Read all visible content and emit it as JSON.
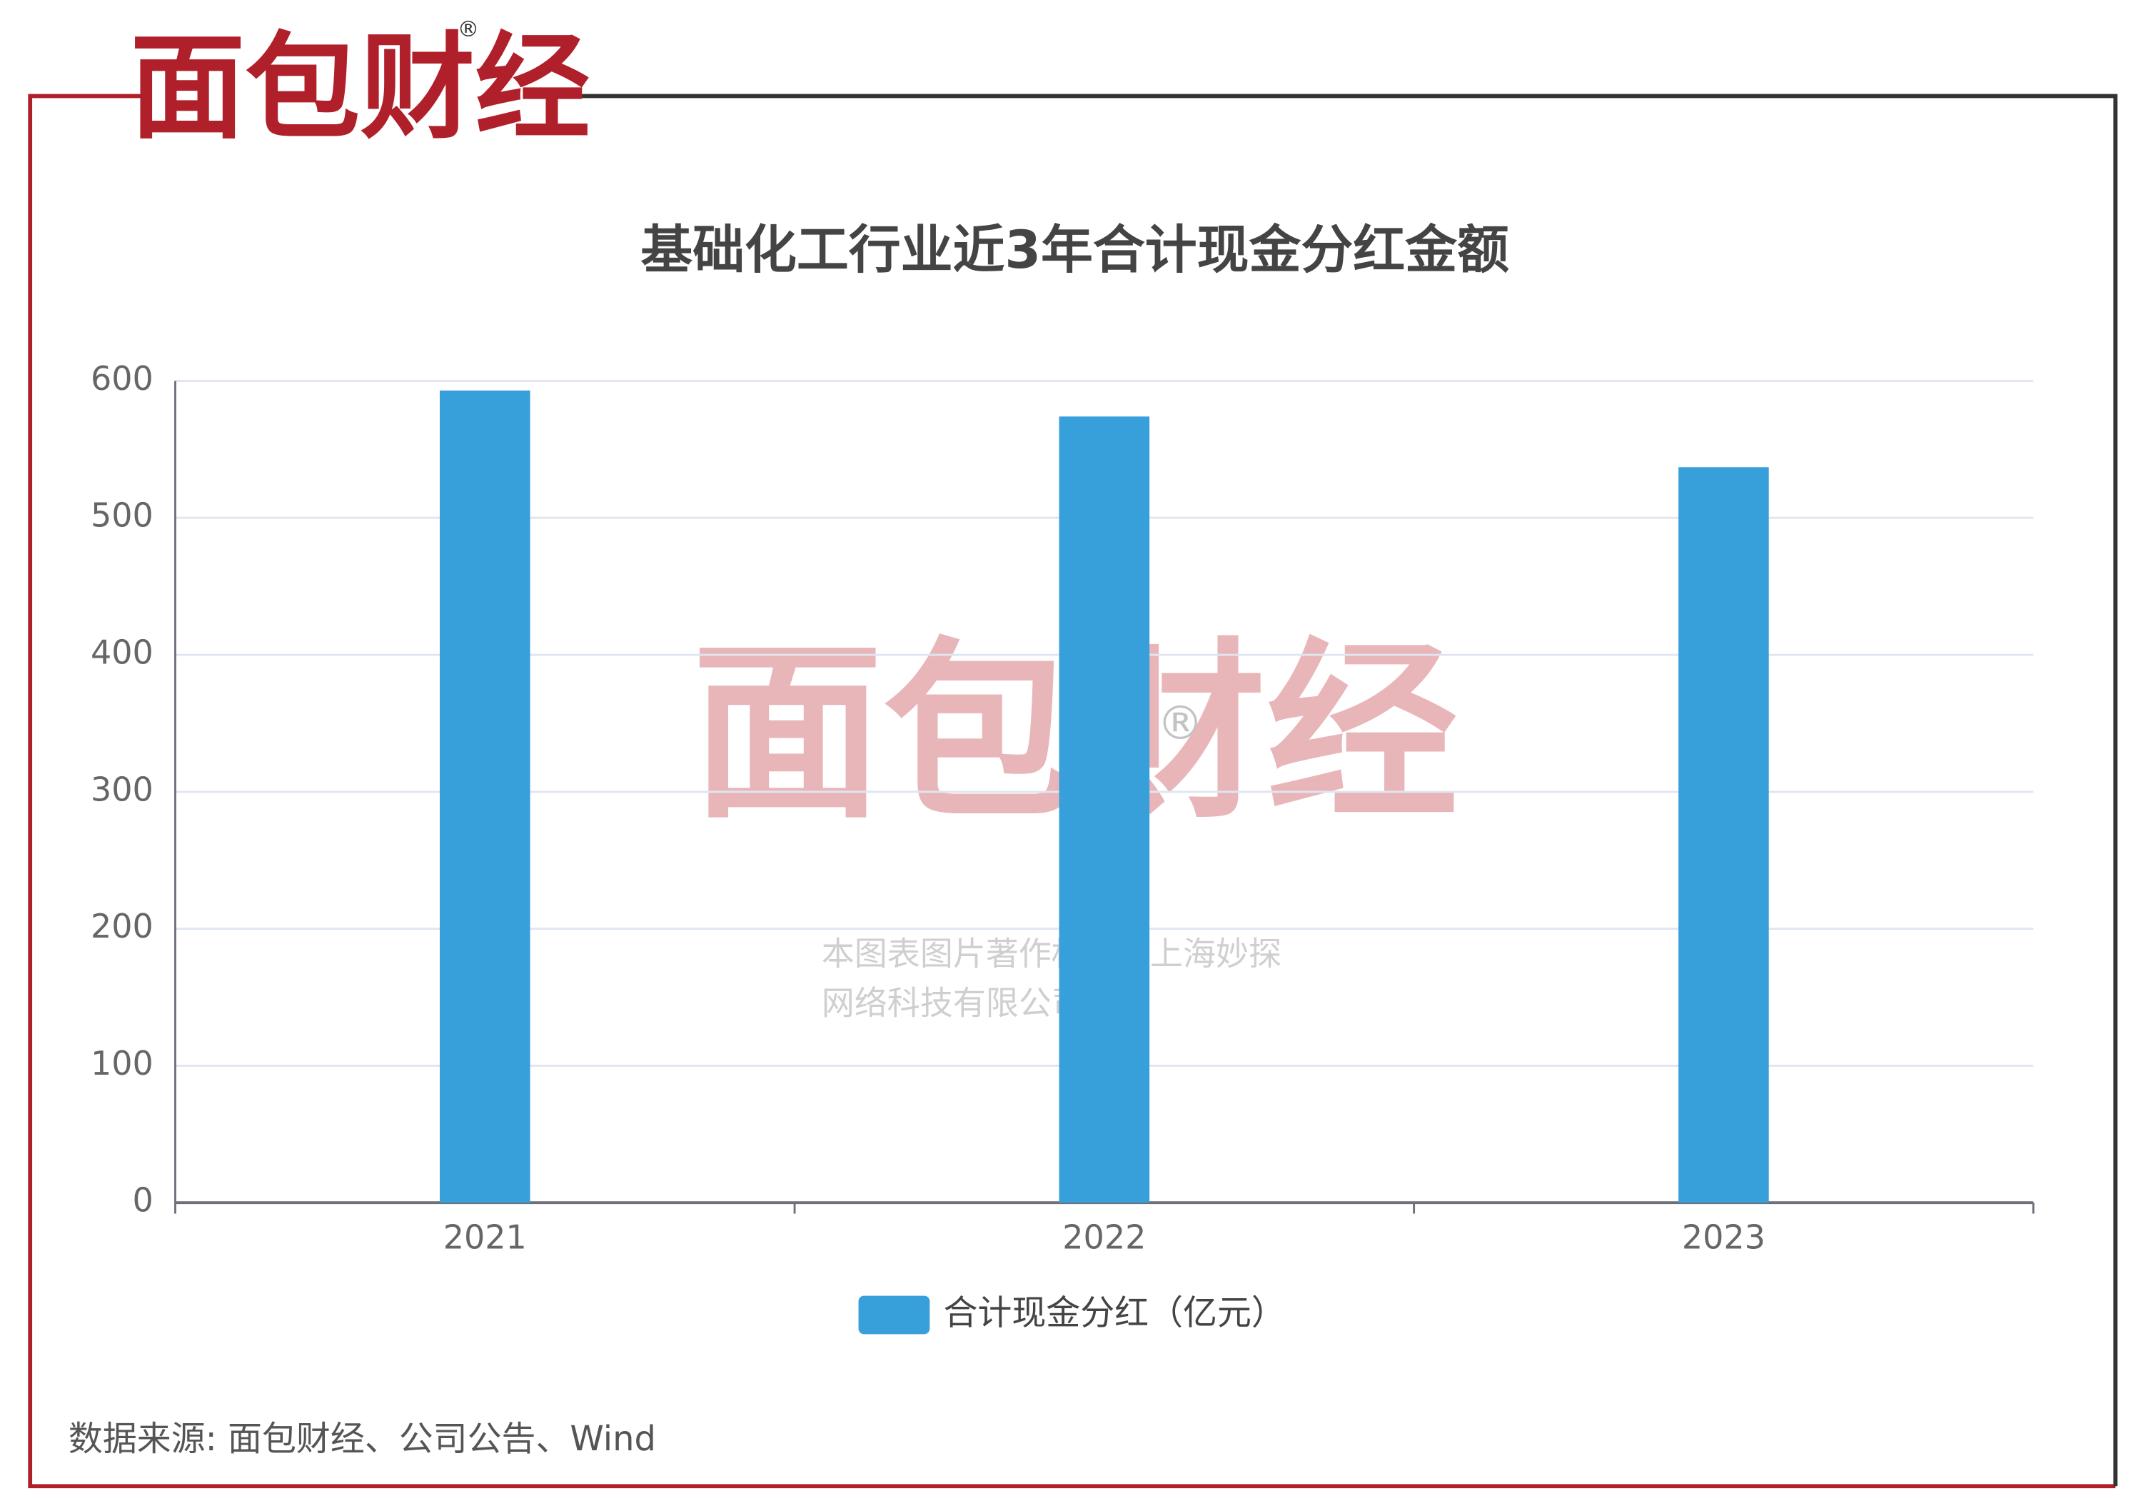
{
  "logo": {
    "text": "面包财经",
    "mark": "®"
  },
  "watermark": {
    "text": "面包财经",
    "mark": "®",
    "lines": [
      "本图表图片著作权属于上海妙探",
      "网络科技有限公司"
    ]
  },
  "chart_data": {
    "type": "bar",
    "title": "基础化工行业近3年合计现金分红金额",
    "categories": [
      "2021",
      "2022",
      "2023"
    ],
    "series": [
      {
        "name": "合计现金分红（亿元）",
        "color": "#379fda",
        "values": [
          593,
          574,
          537
        ]
      }
    ],
    "ylim": [
      0,
      600
    ],
    "yticks": [
      0,
      100,
      200,
      300,
      400,
      500,
      600
    ],
    "grid": true,
    "legend": "bottom"
  },
  "source": "数据来源: 面包财经、公司公告、Wind"
}
